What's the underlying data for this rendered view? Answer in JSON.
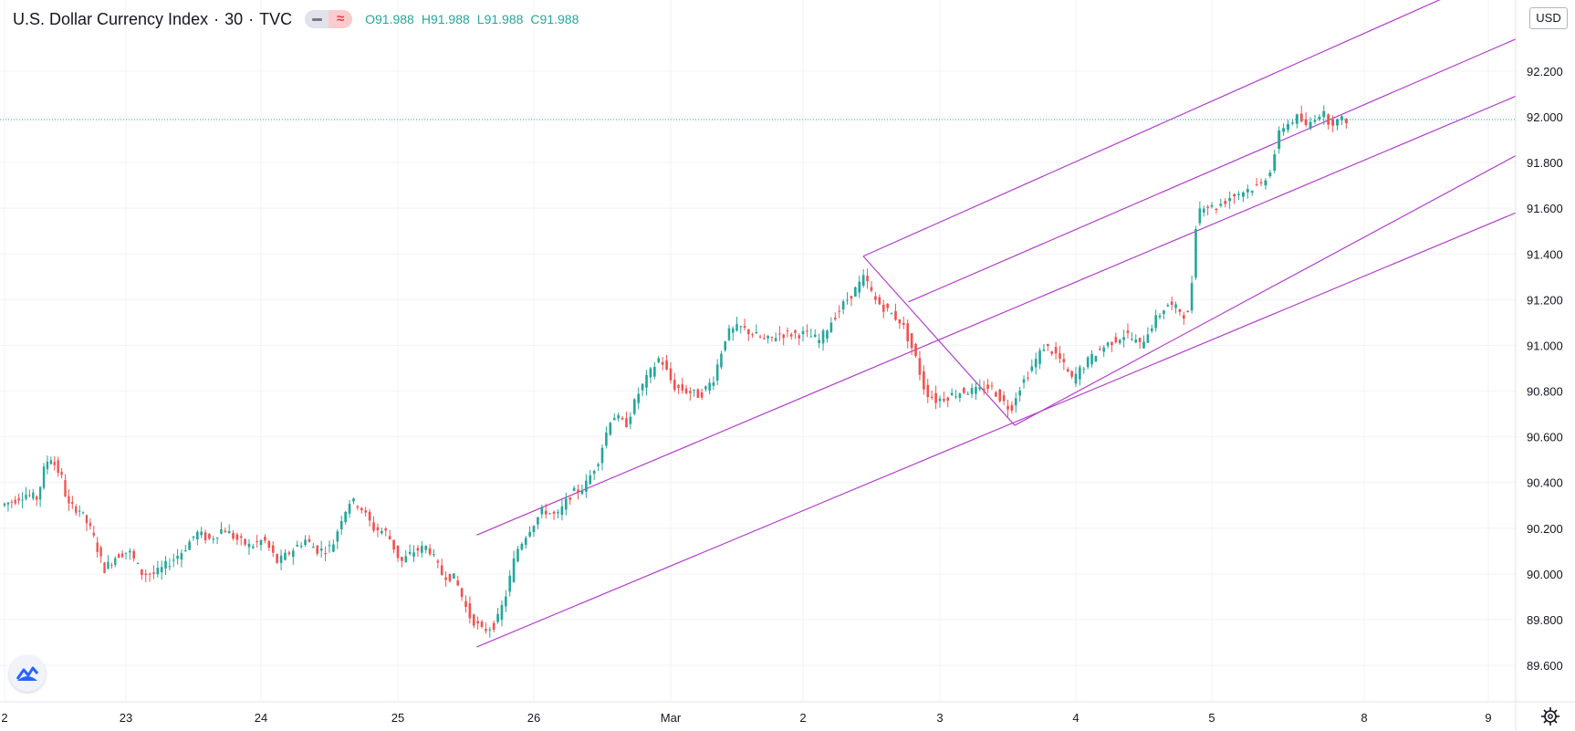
{
  "header": {
    "symbol": "U.S. Dollar Currency Index",
    "interval": "30",
    "exchange": "TVC",
    "o_label": "O",
    "o_value": "91.988",
    "h_label": "H",
    "h_value": "91.988",
    "l_label": "L",
    "l_value": "91.988",
    "c_label": "C",
    "c_value": "91.988"
  },
  "currency_label": "USD",
  "icons": {
    "logo": "tradingview-logo-icon",
    "settings": "gear-icon"
  },
  "colors": {
    "up": "#26a69a",
    "down": "#ef5350",
    "channel": "#b33fcc",
    "last_price_line": "#26a69a",
    "grid": "#f0f3fa"
  },
  "chart_data": {
    "type": "candlestick",
    "title": "U.S. Dollar Currency Index · 30 · TVC",
    "ylabel": "USD",
    "ylim": [
      89.48,
      92.42
    ],
    "y_ticks": [
      "89.600",
      "89.800",
      "90.000",
      "90.200",
      "90.400",
      "90.600",
      "90.800",
      "91.000",
      "91.200",
      "91.400",
      "91.600",
      "91.800",
      "92.000",
      "92.200"
    ],
    "x_ticks": [
      "2",
      "23",
      "24",
      "25",
      "26",
      "Mar",
      "2",
      "3",
      "4",
      "5",
      "8",
      "9"
    ],
    "last_price": 91.988,
    "grid": true,
    "price_path": [
      [
        22.0,
        90.3
      ],
      [
        22.1,
        90.32
      ],
      [
        22.2,
        90.35
      ],
      [
        22.3,
        90.33
      ],
      [
        22.35,
        90.45
      ],
      [
        22.4,
        90.52
      ],
      [
        22.5,
        90.42
      ],
      [
        22.55,
        90.3
      ],
      [
        22.65,
        90.28
      ],
      [
        22.75,
        90.18
      ],
      [
        22.85,
        90.02
      ],
      [
        22.95,
        90.08
      ],
      [
        23.05,
        90.1
      ],
      [
        23.15,
        90.0
      ],
      [
        23.25,
        90.0
      ],
      [
        23.35,
        90.05
      ],
      [
        23.45,
        90.1
      ],
      [
        23.55,
        90.18
      ],
      [
        23.65,
        90.15
      ],
      [
        23.75,
        90.2
      ],
      [
        23.85,
        90.15
      ],
      [
        23.95,
        90.12
      ],
      [
        24.05,
        90.15
      ],
      [
        24.15,
        90.05
      ],
      [
        24.25,
        90.1
      ],
      [
        24.35,
        90.15
      ],
      [
        24.45,
        90.1
      ],
      [
        24.55,
        90.12
      ],
      [
        24.62,
        90.25
      ],
      [
        24.68,
        90.32
      ],
      [
        24.75,
        90.3
      ],
      [
        24.85,
        90.2
      ],
      [
        24.95,
        90.18
      ],
      [
        25.05,
        90.05
      ],
      [
        25.15,
        90.1
      ],
      [
        25.25,
        90.12
      ],
      [
        25.35,
        90.0
      ],
      [
        25.45,
        89.98
      ],
      [
        25.55,
        89.82
      ],
      [
        25.65,
        89.75
      ],
      [
        25.75,
        89.78
      ],
      [
        25.82,
        89.9
      ],
      [
        25.9,
        90.1
      ],
      [
        26.0,
        90.2
      ],
      [
        26.1,
        90.28
      ],
      [
        26.2,
        90.25
      ],
      [
        26.3,
        90.35
      ],
      [
        26.4,
        90.38
      ],
      [
        26.5,
        90.5
      ],
      [
        26.6,
        90.7
      ],
      [
        26.7,
        90.65
      ],
      [
        26.8,
        90.8
      ],
      [
        26.9,
        90.9
      ],
      [
        26.95,
        90.95
      ],
      [
        27.05,
        90.82
      ],
      [
        27.15,
        90.8
      ],
      [
        27.25,
        90.78
      ],
      [
        27.35,
        90.85
      ],
      [
        27.45,
        91.05
      ],
      [
        27.55,
        91.08
      ],
      [
        27.65,
        91.05
      ],
      [
        27.75,
        91.02
      ],
      [
        27.85,
        91.05
      ],
      [
        27.95,
        91.05
      ],
      [
        28.05,
        91.05
      ],
      [
        28.15,
        91.02
      ],
      [
        28.25,
        91.12
      ],
      [
        28.35,
        91.2
      ],
      [
        28.42,
        91.25
      ],
      [
        28.48,
        91.3
      ],
      [
        28.55,
        91.2
      ],
      [
        28.65,
        91.15
      ],
      [
        28.75,
        91.1
      ],
      [
        28.85,
        90.95
      ],
      [
        28.92,
        90.8
      ],
      [
        29.0,
        90.76
      ],
      [
        29.1,
        90.78
      ],
      [
        29.2,
        90.8
      ],
      [
        29.3,
        90.8
      ],
      [
        29.4,
        90.82
      ],
      [
        29.5,
        90.75
      ],
      [
        29.55,
        90.72
      ],
      [
        29.6,
        90.8
      ],
      [
        29.7,
        90.9
      ],
      [
        29.8,
        91.0
      ],
      [
        29.9,
        90.95
      ],
      [
        30.0,
        90.85
      ],
      [
        30.1,
        90.92
      ],
      [
        30.2,
        90.98
      ],
      [
        30.3,
        91.02
      ],
      [
        30.4,
        91.05
      ],
      [
        30.5,
        91.0
      ],
      [
        30.6,
        91.1
      ],
      [
        30.7,
        91.18
      ],
      [
        30.8,
        91.15
      ],
      [
        30.85,
        91.12
      ],
      [
        30.88,
        91.25
      ],
      [
        30.9,
        91.5
      ],
      [
        30.95,
        91.62
      ],
      [
        31.05,
        91.6
      ],
      [
        31.15,
        91.65
      ],
      [
        31.25,
        91.68
      ],
      [
        31.35,
        91.7
      ],
      [
        31.42,
        91.78
      ],
      [
        31.48,
        91.95
      ],
      [
        31.55,
        91.98
      ],
      [
        31.6,
        92.0
      ],
      [
        31.65,
        91.95
      ],
      [
        31.7,
        92.0
      ],
      [
        31.75,
        92.02
      ],
      [
        31.8,
        91.98
      ],
      [
        31.85,
        91.98
      ],
      [
        31.9,
        91.988
      ]
    ],
    "annotations": [
      {
        "type": "line",
        "label": "",
        "points": [
          [
            25.58,
            89.68
          ],
          [
            34.0,
            91.58
          ]
        ]
      },
      {
        "type": "line",
        "label": "",
        "points": [
          [
            25.58,
            90.17
          ],
          [
            34.0,
            92.09
          ]
        ]
      },
      {
        "type": "line",
        "label": "",
        "points": [
          [
            28.44,
            91.39
          ],
          [
            34.0,
            92.66
          ]
        ]
      },
      {
        "type": "line",
        "label": "",
        "points": [
          [
            28.77,
            91.19
          ],
          [
            34.0,
            92.34
          ]
        ]
      },
      {
        "type": "line",
        "label": "",
        "points": [
          [
            29.55,
            90.65
          ],
          [
            34.0,
            91.83
          ]
        ]
      },
      {
        "type": "line",
        "label": "",
        "points": [
          [
            28.44,
            91.39
          ],
          [
            29.55,
            90.65
          ]
        ]
      }
    ]
  }
}
